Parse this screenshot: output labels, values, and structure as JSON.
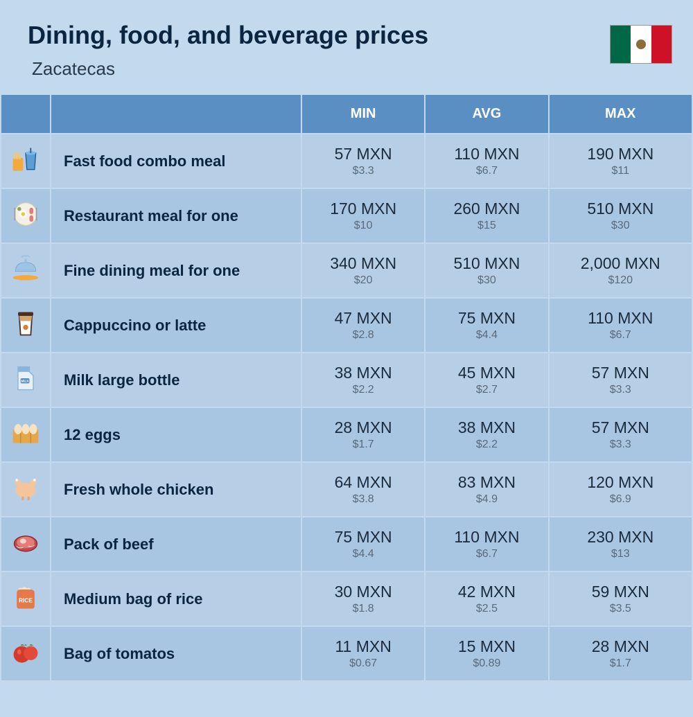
{
  "header": {
    "title": "Dining, food, and beverage prices",
    "subtitle": "Zacatecas",
    "flag_colors": {
      "left": "#006847",
      "center": "#ffffff",
      "right": "#ce1126",
      "emblem": "#8a6d3b"
    }
  },
  "table": {
    "headers": {
      "icon": "",
      "label": "",
      "min": "MIN",
      "avg": "AVG",
      "max": "MAX"
    },
    "header_bg": "#5a8fc4",
    "header_text_color": "#ffffff",
    "row_bg_odd": "#b6cfe7",
    "row_bg_even": "#a8c5e2",
    "label_color": "#0a2540",
    "mxn_color": "#1a2a3a",
    "usd_color": "#5a6a7a",
    "rows": [
      {
        "icon": "fast-food",
        "label": "Fast food combo meal",
        "min_mxn": "57 MXN",
        "min_usd": "$3.3",
        "avg_mxn": "110 MXN",
        "avg_usd": "$6.7",
        "max_mxn": "190 MXN",
        "max_usd": "$11"
      },
      {
        "icon": "restaurant",
        "label": "Restaurant meal for one",
        "min_mxn": "170 MXN",
        "min_usd": "$10",
        "avg_mxn": "260 MXN",
        "avg_usd": "$15",
        "max_mxn": "510 MXN",
        "max_usd": "$30"
      },
      {
        "icon": "fine-dining",
        "label": "Fine dining meal for one",
        "min_mxn": "340 MXN",
        "min_usd": "$20",
        "avg_mxn": "510 MXN",
        "avg_usd": "$30",
        "max_mxn": "2,000 MXN",
        "max_usd": "$120"
      },
      {
        "icon": "coffee",
        "label": "Cappuccino or latte",
        "min_mxn": "47 MXN",
        "min_usd": "$2.8",
        "avg_mxn": "75 MXN",
        "avg_usd": "$4.4",
        "max_mxn": "110 MXN",
        "max_usd": "$6.7"
      },
      {
        "icon": "milk",
        "label": "Milk large bottle",
        "min_mxn": "38 MXN",
        "min_usd": "$2.2",
        "avg_mxn": "45 MXN",
        "avg_usd": "$2.7",
        "max_mxn": "57 MXN",
        "max_usd": "$3.3"
      },
      {
        "icon": "eggs",
        "label": "12 eggs",
        "min_mxn": "28 MXN",
        "min_usd": "$1.7",
        "avg_mxn": "38 MXN",
        "avg_usd": "$2.2",
        "max_mxn": "57 MXN",
        "max_usd": "$3.3"
      },
      {
        "icon": "chicken",
        "label": "Fresh whole chicken",
        "min_mxn": "64 MXN",
        "min_usd": "$3.8",
        "avg_mxn": "83 MXN",
        "avg_usd": "$4.9",
        "max_mxn": "120 MXN",
        "max_usd": "$6.9"
      },
      {
        "icon": "beef",
        "label": "Pack of beef",
        "min_mxn": "75 MXN",
        "min_usd": "$4.4",
        "avg_mxn": "110 MXN",
        "avg_usd": "$6.7",
        "max_mxn": "230 MXN",
        "max_usd": "$13"
      },
      {
        "icon": "rice",
        "label": "Medium bag of rice",
        "min_mxn": "30 MXN",
        "min_usd": "$1.8",
        "avg_mxn": "42 MXN",
        "avg_usd": "$2.5",
        "max_mxn": "59 MXN",
        "max_usd": "$3.5"
      },
      {
        "icon": "tomato",
        "label": "Bag of tomatos",
        "min_mxn": "11 MXN",
        "min_usd": "$0.67",
        "avg_mxn": "15 MXN",
        "avg_usd": "$0.89",
        "max_mxn": "28 MXN",
        "max_usd": "$1.7"
      }
    ]
  },
  "background_color": "#c3d9ed"
}
